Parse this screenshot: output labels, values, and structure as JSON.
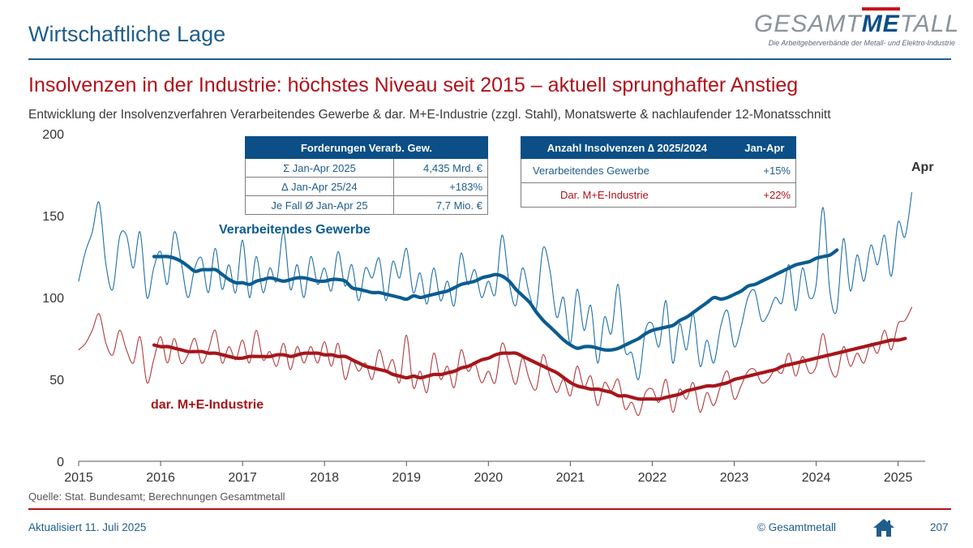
{
  "header": {
    "section_title": "Wirtschaftliche Lage",
    "logo_prefix": "GESAMT",
    "logo_highlight": "ME",
    "logo_suffix": "TALL",
    "logo_tagline": "Die Arbeitgeberverbände der Metall- und Elektro-Industrie"
  },
  "headline": "Insolvenzen  in der Industrie: höchstes Niveau  seit 2015 – aktuell sprunghafter Anstieg",
  "subtitle": "Entwicklung der Insolvenzverfahren Verarbeitendes Gewerbe & dar. M+E-Industrie (zzgl. Stahl), Monatswerte & nachlaufender 12-Monatsschnitt",
  "table_forderungen": {
    "header": "Forderungen Verarb. Gew.",
    "rows": [
      {
        "label": "Σ Jan-Apr 2025",
        "value": "4,435 Mrd. €"
      },
      {
        "label": "∆ Jan-Apr 25/24",
        "value": "+183%"
      },
      {
        "label": "Je Fall Ø Jan-Apr 25",
        "value": "7,7 Mio. €"
      }
    ]
  },
  "table_anzahl": {
    "header_left": "Anzahl Insolvenzen ∆ 2025/2024",
    "header_right": "Jan-Apr",
    "rows": [
      {
        "label": "Verarbeitendes Gewerbe",
        "value": "+15%"
      },
      {
        "label": "Dar. M+E-Industrie",
        "value": "+22%"
      }
    ]
  },
  "footer": {
    "source": "Quelle:  Stat. Bundesamt;  Berechnungen  Gesamtmetall",
    "updated": "Aktualisiert 11. Juli 2025",
    "copyright": "© Gesamtmetall",
    "page": "207",
    "home_icon": "home-icon"
  },
  "colors": {
    "blue": "#0b5c91",
    "red": "#a6161b",
    "accent_red": "#b0121b",
    "text_blue": "#1f5d8c"
  },
  "chart_data": {
    "type": "line",
    "title": "Insolvenzen in der Industrie",
    "xlabel": "",
    "ylabel": "",
    "ylim": [
      0,
      200
    ],
    "xlim": [
      2015.0,
      2025.33
    ],
    "y_ticks": [
      0,
      50,
      100,
      150,
      200
    ],
    "x_ticks": [
      "2015",
      "2016",
      "2017",
      "2018",
      "2019",
      "2020",
      "2021",
      "2022",
      "2023",
      "2024",
      "2025"
    ],
    "annotations": [
      "Apr"
    ],
    "series": [
      {
        "name": "Verarbeitendes Gewerbe",
        "label": "Verarbeitendes Gewerbe",
        "style": "thin",
        "color": "#1f6fa8",
        "start": 2015.0,
        "step": 0.083333,
        "values": [
          110,
          128,
          140,
          158,
          120,
          105,
          137,
          138,
          118,
          140,
          100,
          118,
          128,
          108,
          140,
          122,
          100,
          118,
          124,
          103,
          130,
          105,
          120,
          103,
          135,
          100,
          125,
          103,
          118,
          110,
          140,
          105,
          120,
          100,
          125,
          108,
          118,
          104,
          128,
          107,
          120,
          98,
          118,
          112,
          124,
          98,
          122,
          112,
          130,
          103,
          115,
          96,
          118,
          98,
          110,
          95,
          127,
          108,
          117,
          100,
          110,
          102,
          138,
          110,
          95,
          118,
          102,
          93,
          130,
          117,
          88,
          100,
          72,
          105,
          80,
          95,
          60,
          88,
          78,
          108,
          68,
          66,
          50,
          80,
          84,
          70,
          98,
          60,
          84,
          68,
          90,
          58,
          74,
          60,
          82,
          92,
          70,
          82,
          100,
          104,
          86,
          90,
          100,
          97,
          120,
          92,
          118,
          100,
          108,
          155,
          104,
          92,
          136,
          104,
          126,
          110,
          132,
          120,
          138,
          113,
          146,
          137,
          164
        ]
      },
      {
        "name": "Verarbeitendes Gewerbe (12-Monatsschnitt)",
        "label": "Verarbeitendes Gewerbe",
        "style": "thick",
        "color": "#0b5c91",
        "start": 2015.92,
        "step": 0.083333,
        "values": [
          125,
          125,
          125,
          124,
          122,
          119,
          116,
          117,
          117,
          117,
          114,
          111,
          109,
          109,
          108,
          110,
          111,
          112,
          111,
          110,
          111,
          112,
          112,
          111,
          110,
          110,
          111,
          111,
          110,
          106,
          105,
          104,
          103,
          103,
          102,
          101,
          100,
          99,
          101,
          100,
          101,
          102,
          103,
          104,
          106,
          108,
          109,
          110,
          112,
          113,
          114,
          113,
          110,
          105,
          101,
          97,
          91,
          86,
          82,
          78,
          74,
          71,
          69,
          70,
          70,
          69,
          68,
          68,
          69,
          71,
          73,
          75,
          78,
          80,
          81,
          82,
          83,
          86,
          88,
          91,
          94,
          97,
          100,
          99,
          100,
          102,
          104,
          107,
          108,
          110,
          112,
          114,
          116,
          118,
          120,
          121,
          122,
          124,
          125,
          126,
          129
        ]
      },
      {
        "name": "dar. M+E-Industrie",
        "label": "dar. M+E-Industrie",
        "style": "thin",
        "color": "#b13a3e",
        "start": 2015.0,
        "step": 0.083333,
        "values": [
          68,
          72,
          80,
          90,
          72,
          65,
          80,
          68,
          60,
          76,
          48,
          62,
          76,
          60,
          75,
          60,
          65,
          75,
          60,
          68,
          80,
          60,
          70,
          62,
          74,
          60,
          80,
          62,
          67,
          58,
          72,
          56,
          70,
          60,
          70,
          60,
          73,
          58,
          72,
          50,
          62,
          55,
          60,
          50,
          68,
          55,
          62,
          48,
          77,
          45,
          55,
          42,
          66,
          50,
          58,
          45,
          68,
          55,
          60,
          48,
          55,
          48,
          72,
          60,
          47,
          63,
          50,
          44,
          65,
          52,
          42,
          50,
          40,
          58,
          45,
          52,
          34,
          48,
          43,
          50,
          32,
          36,
          28,
          42,
          44,
          36,
          50,
          30,
          44,
          38,
          48,
          30,
          42,
          34,
          46,
          55,
          38,
          46,
          55,
          56,
          48,
          50,
          56,
          54,
          66,
          52,
          64,
          54,
          58,
          78,
          58,
          52,
          70,
          58,
          66,
          60,
          72,
          66,
          80,
          68,
          84,
          86,
          94
        ]
      },
      {
        "name": "dar. M+E-Industrie (12-Monatsschnitt)",
        "label": "dar. M+E-Industrie",
        "style": "thick",
        "color": "#a6161b",
        "start": 2015.92,
        "step": 0.083333,
        "values": [
          71,
          70,
          70,
          69,
          68,
          67,
          67,
          67,
          66,
          66,
          65,
          64,
          63,
          63,
          64,
          64,
          64,
          64,
          65,
          65,
          64,
          65,
          66,
          66,
          66,
          65,
          65,
          64,
          64,
          62,
          60,
          58,
          57,
          56,
          55,
          53,
          52,
          51,
          52,
          51,
          52,
          53,
          53,
          54,
          55,
          57,
          58,
          60,
          62,
          63,
          65,
          66,
          66,
          66,
          64,
          62,
          60,
          58,
          56,
          54,
          51,
          48,
          46,
          45,
          44,
          44,
          43,
          42,
          40,
          40,
          39,
          38,
          38,
          38,
          38,
          39,
          40,
          41,
          43,
          44,
          45,
          46,
          46,
          47,
          48,
          50,
          51,
          52,
          53,
          54,
          55,
          56,
          58,
          59,
          60,
          61,
          62,
          63,
          64,
          65,
          66,
          67,
          68,
          69,
          70,
          71,
          72,
          73,
          74,
          74,
          75
        ]
      }
    ]
  }
}
